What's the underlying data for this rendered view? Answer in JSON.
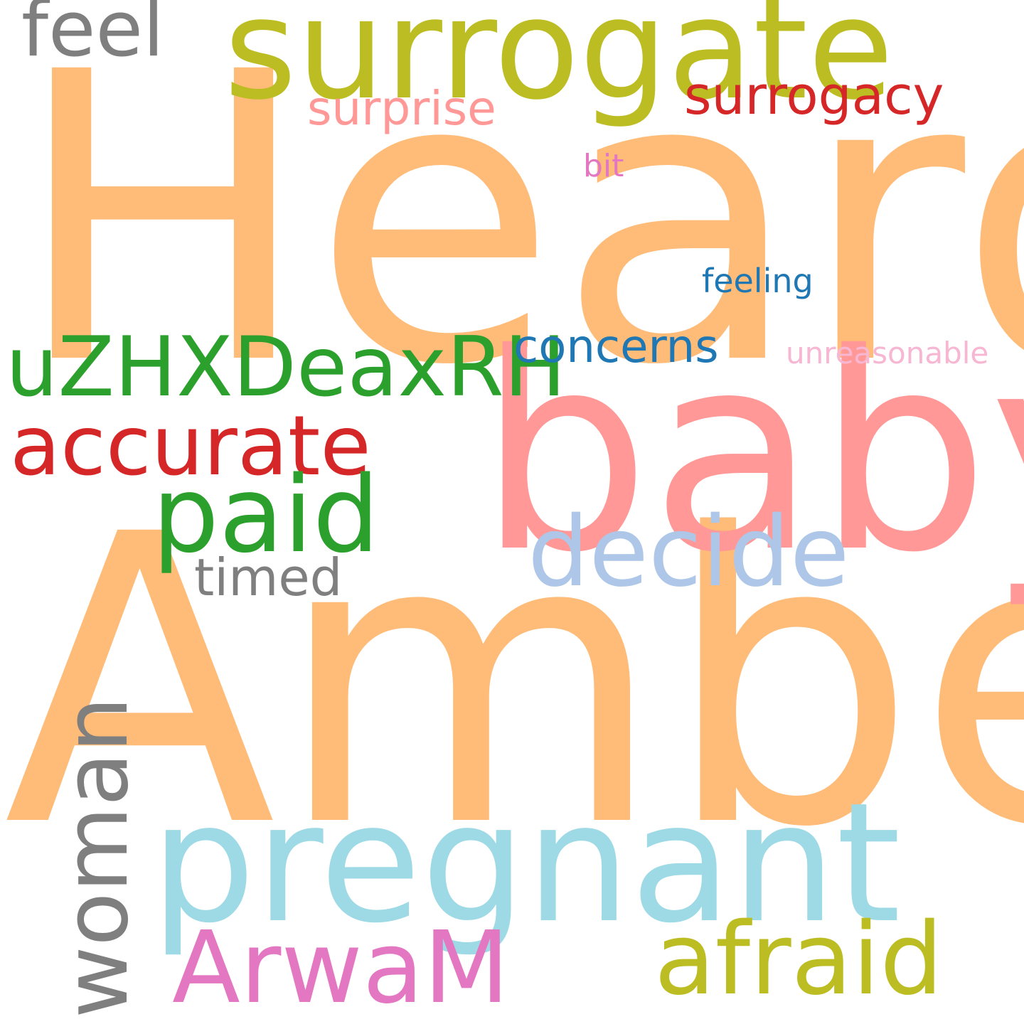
{
  "words": {
    "heard": {
      "text": "Heard",
      "color": "#ffbb78"
    },
    "amber": {
      "text": "Amber",
      "color": "#ffbb78"
    },
    "baby": {
      "text": "baby",
      "color": "#ff9896"
    },
    "pregnant": {
      "text": "pregnant",
      "color": "#9edae5"
    },
    "surrogate": {
      "text": "surrogate",
      "color": "#bcbd22"
    },
    "feel": {
      "text": "feel",
      "color": "#7f7f7f"
    },
    "surrogacy": {
      "text": "surrogacy",
      "color": "#d62728"
    },
    "surprise": {
      "text": "surprise",
      "color": "#ff9896"
    },
    "bit": {
      "text": "bit",
      "color": "#e377c2"
    },
    "feeling": {
      "text": "feeling",
      "color": "#1f77b4"
    },
    "uzhx": {
      "text": "uZHXDeaxRH",
      "color": "#2ca02c"
    },
    "concerns": {
      "text": "concerns",
      "color": "#1f77b4"
    },
    "unreasonable": {
      "text": "unreasonable",
      "color": "#f7b6d2"
    },
    "accurate": {
      "text": "accurate",
      "color": "#d62728"
    },
    "paid": {
      "text": "paid",
      "color": "#2ca02c"
    },
    "decide": {
      "text": "decide",
      "color": "#aec7e8"
    },
    "timed": {
      "text": "timed",
      "color": "#7f7f7f"
    },
    "woman": {
      "text": "woman",
      "color": "#7f7f7f"
    },
    "arwam": {
      "text": "ArwaM",
      "color": "#e377c2"
    },
    "afraid": {
      "text": "afraid",
      "color": "#bcbd22"
    }
  }
}
